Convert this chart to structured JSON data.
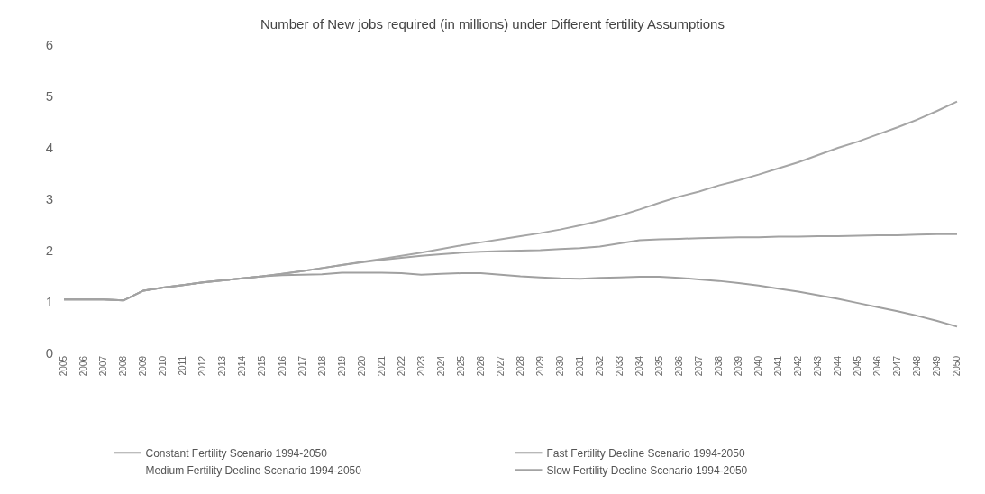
{
  "chart_data": {
    "type": "line",
    "title": "Number of New jobs required (in millions) under Different fertility Assumptions",
    "categories": [
      "2005",
      "2006",
      "2007",
      "2008",
      "2009",
      "2010",
      "2011",
      "2012",
      "2013",
      "2014",
      "2015",
      "2016",
      "2017",
      "2018",
      "2019",
      "2020",
      "2021",
      "2022",
      "2023",
      "2024",
      "2025",
      "2026",
      "2027",
      "2028",
      "2029",
      "2030",
      "2031",
      "2032",
      "2033",
      "2034",
      "2035",
      "2036",
      "2037",
      "2038",
      "2039",
      "2040",
      "2041",
      "2042",
      "2043",
      "2044",
      "2045",
      "2046",
      "2047",
      "2048",
      "2049",
      "2050"
    ],
    "series": [
      {
        "name": "Constant Fertility Scenario 1994-2050",
        "color": "#a6a6a6",
        "values": [
          1.05,
          1.05,
          1.05,
          1.03,
          1.22,
          1.28,
          1.33,
          1.38,
          1.42,
          1.46,
          1.5,
          1.55,
          1.6,
          1.66,
          1.72,
          1.78,
          1.84,
          1.9,
          1.96,
          2.03,
          2.1,
          2.16,
          2.22,
          2.28,
          2.34,
          2.41,
          2.49,
          2.58,
          2.68,
          2.8,
          2.93,
          3.05,
          3.15,
          3.27,
          3.37,
          3.48,
          3.6,
          3.72,
          3.86,
          4.0,
          4.12,
          4.26,
          4.4,
          4.55,
          4.72,
          4.9
        ]
      },
      {
        "name": "Fast Fertility Decline Scenario 1994-2050",
        "color": "#a0a0a0",
        "values": [
          1.05,
          1.05,
          1.05,
          1.03,
          1.22,
          1.28,
          1.33,
          1.38,
          1.42,
          1.46,
          1.5,
          1.52,
          1.53,
          1.54,
          1.57,
          1.57,
          1.57,
          1.56,
          1.53,
          1.55,
          1.56,
          1.56,
          1.53,
          1.5,
          1.48,
          1.46,
          1.45,
          1.47,
          1.48,
          1.49,
          1.49,
          1.47,
          1.44,
          1.41,
          1.37,
          1.32,
          1.26,
          1.2,
          1.13,
          1.06,
          0.98,
          0.9,
          0.82,
          0.73,
          0.63,
          0.52
        ]
      },
      {
        "name": "Medium Fertility Decline Scenario 1994-2050",
        "values": [
          null,
          null,
          null,
          null,
          null,
          null,
          null,
          null,
          null,
          null,
          null,
          null,
          null,
          null,
          null,
          null,
          null,
          null,
          null,
          null,
          null,
          null,
          null,
          null,
          null,
          null,
          null,
          null,
          null,
          null,
          null,
          null,
          null,
          null,
          null,
          null,
          null,
          null,
          null,
          null,
          null,
          null,
          null,
          null,
          null,
          null
        ]
      },
      {
        "name": "Slow Fertility Decline Scenario 1994-2050",
        "color": "#a3a3a3",
        "values": [
          1.05,
          1.05,
          1.05,
          1.03,
          1.22,
          1.28,
          1.33,
          1.38,
          1.42,
          1.46,
          1.5,
          1.55,
          1.6,
          1.66,
          1.72,
          1.77,
          1.82,
          1.86,
          1.9,
          1.93,
          1.96,
          1.98,
          1.99,
          2.0,
          2.01,
          2.03,
          2.05,
          2.08,
          2.14,
          2.2,
          2.22,
          2.23,
          2.24,
          2.25,
          2.26,
          2.26,
          2.27,
          2.27,
          2.28,
          2.28,
          2.29,
          2.3,
          2.3,
          2.31,
          2.32,
          2.32
        ]
      }
    ],
    "ylim": [
      0,
      6
    ],
    "yticks": [
      0,
      1,
      2,
      3,
      4,
      5,
      6
    ],
    "grid": false,
    "legend": "bottom",
    "marker": "none",
    "line_style": "solid"
  }
}
